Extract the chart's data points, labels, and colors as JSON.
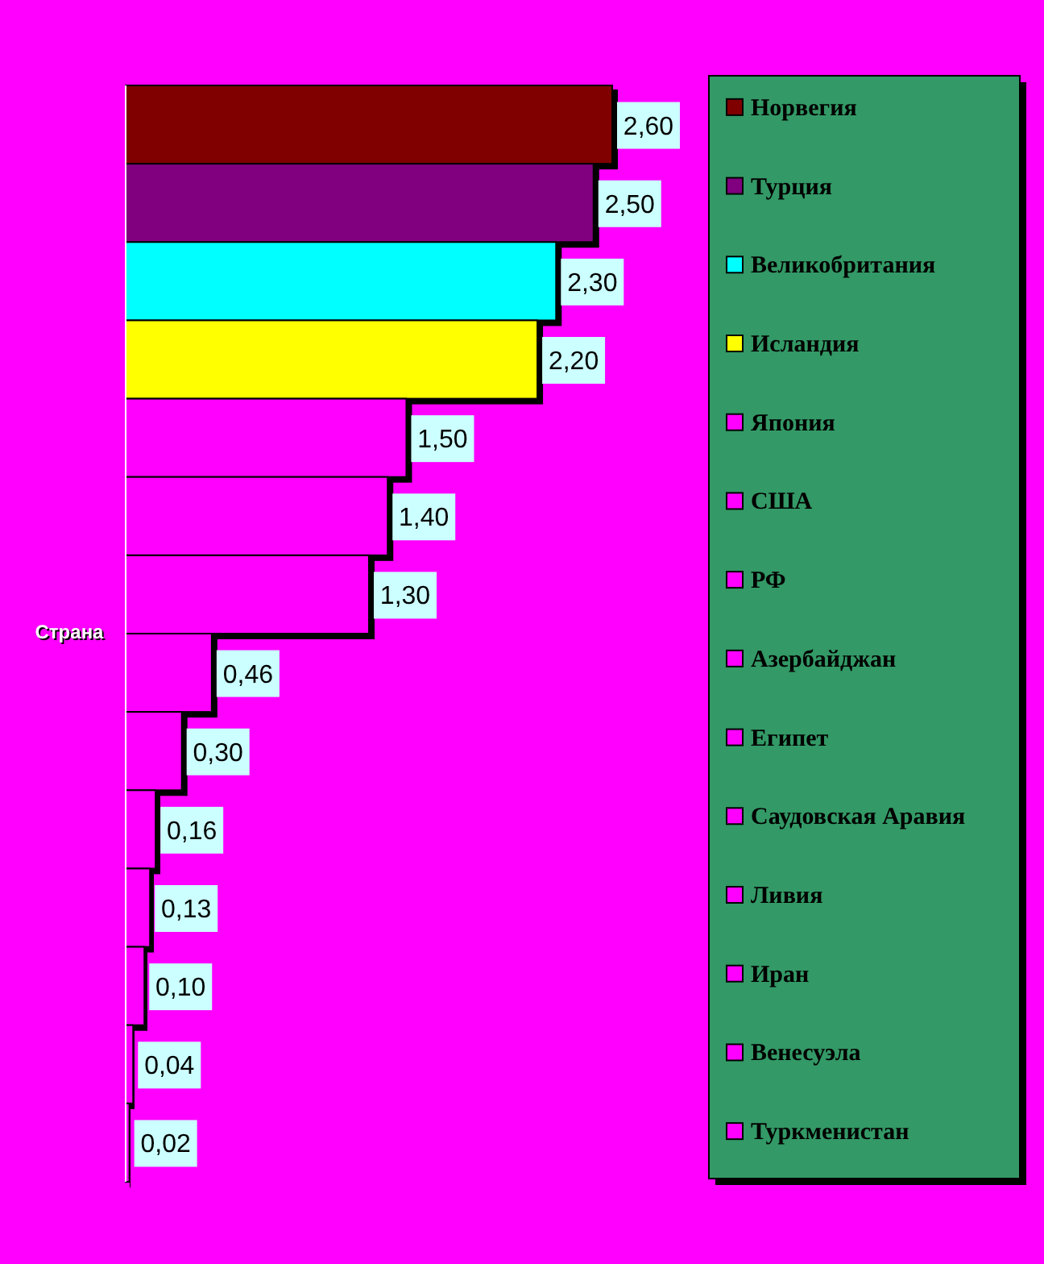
{
  "chart_data": {
    "type": "bar",
    "orientation": "horizontal",
    "ylabel": "Страна",
    "legend": "right",
    "stacked": true,
    "categories": [
      null,
      null,
      null,
      null,
      null,
      null,
      null,
      null,
      null,
      null,
      null,
      null,
      null,
      null
    ],
    "series": [
      {
        "name": "Норвегия",
        "color": "#800000",
        "values": [
          2.6,
          null,
          null,
          null,
          null,
          null,
          null,
          null,
          null,
          null,
          null,
          null,
          null,
          null
        ],
        "value_labels": [
          "2,60",
          null,
          null,
          null,
          null,
          null,
          null,
          null,
          null,
          null,
          null,
          null,
          null,
          null
        ]
      },
      {
        "name": "Турция",
        "color": "#800080",
        "values": [
          null,
          2.5,
          null,
          null,
          null,
          null,
          null,
          null,
          null,
          null,
          null,
          null,
          null,
          null
        ],
        "value_labels": [
          null,
          "2,50",
          null,
          null,
          null,
          null,
          null,
          null,
          null,
          null,
          null,
          null,
          null,
          null
        ]
      },
      {
        "name": "Великобритания",
        "color": "#00ffff",
        "values": [
          null,
          null,
          2.3,
          null,
          null,
          null,
          null,
          null,
          null,
          null,
          null,
          null,
          null,
          null
        ],
        "value_labels": [
          null,
          null,
          "2,30",
          null,
          null,
          null,
          null,
          null,
          null,
          null,
          null,
          null,
          null,
          null
        ]
      },
      {
        "name": "Исландия",
        "color": "#ffff00",
        "values": [
          null,
          null,
          null,
          2.2,
          null,
          null,
          null,
          null,
          null,
          null,
          null,
          null,
          null,
          null
        ],
        "value_labels": [
          null,
          null,
          null,
          "2,20",
          null,
          null,
          null,
          null,
          null,
          null,
          null,
          null,
          null,
          null
        ]
      },
      {
        "name": "Япония",
        "color": "#ff00ff",
        "values": [
          null,
          null,
          null,
          null,
          1.5,
          null,
          null,
          null,
          null,
          null,
          null,
          null,
          null,
          null
        ],
        "value_labels": [
          null,
          null,
          null,
          null,
          "1,50",
          null,
          null,
          null,
          null,
          null,
          null,
          null,
          null,
          null
        ]
      },
      {
        "name": "США",
        "color": "#ff00ff",
        "values": [
          null,
          null,
          null,
          null,
          null,
          1.4,
          null,
          null,
          null,
          null,
          null,
          null,
          null,
          null
        ],
        "value_labels": [
          null,
          null,
          null,
          null,
          null,
          "1,40",
          null,
          null,
          null,
          null,
          null,
          null,
          null,
          null
        ]
      },
      {
        "name": "РФ",
        "color": "#ff00ff",
        "values": [
          null,
          null,
          null,
          null,
          null,
          null,
          1.3,
          null,
          null,
          null,
          null,
          null,
          null,
          null
        ],
        "value_labels": [
          null,
          null,
          null,
          null,
          null,
          null,
          "1,30",
          null,
          null,
          null,
          null,
          null,
          null,
          null
        ]
      },
      {
        "name": "Азербайджан",
        "color": "#ff00ff",
        "values": [
          null,
          null,
          null,
          null,
          null,
          null,
          null,
          0.46,
          null,
          null,
          null,
          null,
          null,
          null
        ],
        "value_labels": [
          null,
          null,
          null,
          null,
          null,
          null,
          null,
          "0,46",
          null,
          null,
          null,
          null,
          null,
          null
        ]
      },
      {
        "name": "Египет",
        "color": "#ff00ff",
        "values": [
          null,
          null,
          null,
          null,
          null,
          null,
          null,
          null,
          0.3,
          null,
          null,
          null,
          null,
          null
        ],
        "value_labels": [
          null,
          null,
          null,
          null,
          null,
          null,
          null,
          null,
          "0,30",
          null,
          null,
          null,
          null,
          null
        ]
      },
      {
        "name": "Саудовская Аравия",
        "color": "#ff00ff",
        "values": [
          null,
          null,
          null,
          null,
          null,
          null,
          null,
          null,
          null,
          0.16,
          null,
          null,
          null,
          null
        ],
        "value_labels": [
          null,
          null,
          null,
          null,
          null,
          null,
          null,
          null,
          null,
          "0,16",
          null,
          null,
          null,
          null
        ]
      },
      {
        "name": "Ливия",
        "color": "#ff00ff",
        "values": [
          null,
          null,
          null,
          null,
          null,
          null,
          null,
          null,
          null,
          null,
          0.13,
          null,
          null,
          null
        ],
        "value_labels": [
          null,
          null,
          null,
          null,
          null,
          null,
          null,
          null,
          null,
          null,
          "0,13",
          null,
          null,
          null
        ]
      },
      {
        "name": "Иран",
        "color": "#ff00ff",
        "values": [
          null,
          null,
          null,
          null,
          null,
          null,
          null,
          null,
          null,
          null,
          null,
          0.1,
          null,
          null
        ],
        "value_labels": [
          null,
          null,
          null,
          null,
          null,
          null,
          null,
          null,
          null,
          null,
          null,
          "0,10",
          null,
          null
        ]
      },
      {
        "name": "Венесуэла",
        "color": "#ff00ff",
        "values": [
          null,
          null,
          null,
          null,
          null,
          null,
          null,
          null,
          null,
          null,
          null,
          null,
          0.04,
          null
        ],
        "value_labels": [
          null,
          null,
          null,
          null,
          null,
          null,
          null,
          null,
          null,
          null,
          null,
          null,
          "0,04",
          null
        ]
      },
      {
        "name": "Туркменистан",
        "color": "#ff00ff",
        "values": [
          null,
          null,
          null,
          null,
          null,
          null,
          null,
          null,
          null,
          null,
          null,
          null,
          null,
          0.02
        ],
        "value_labels": [
          null,
          null,
          null,
          null,
          null,
          null,
          null,
          null,
          null,
          null,
          null,
          null,
          null,
          "0,02"
        ]
      }
    ]
  }
}
